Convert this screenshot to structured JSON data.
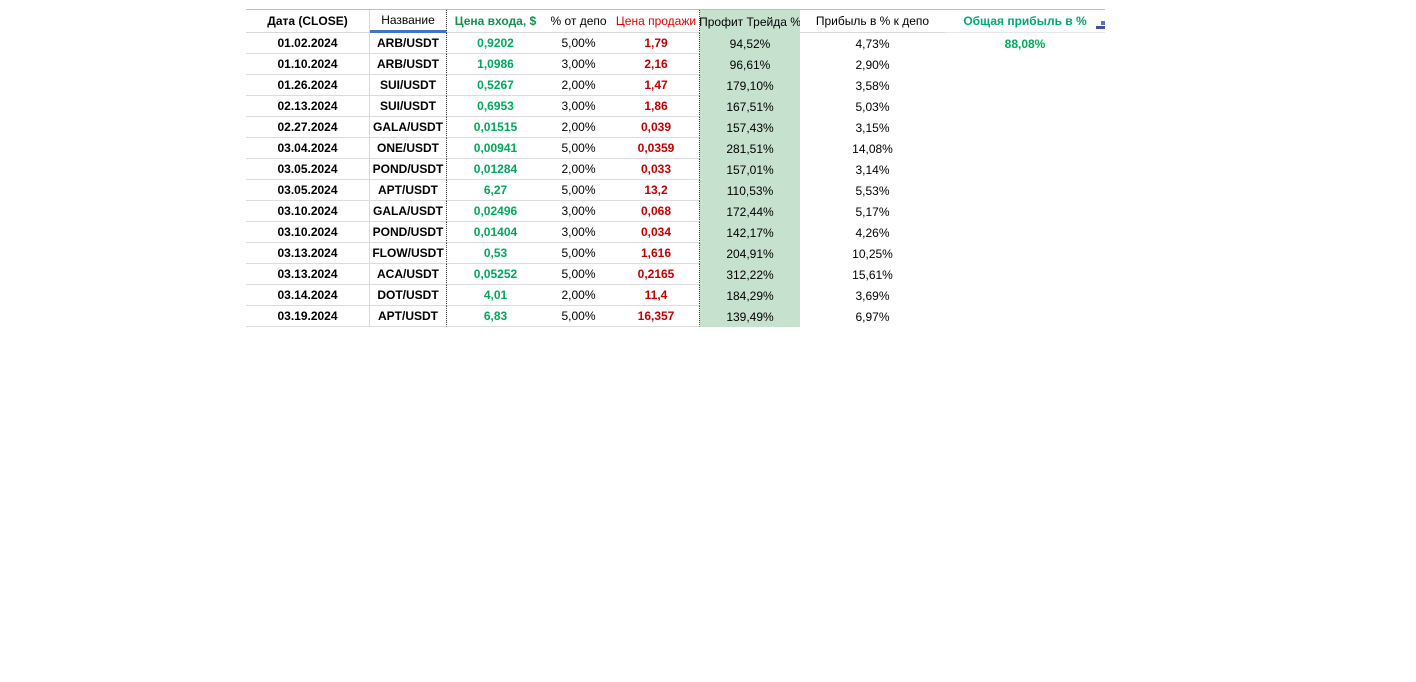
{
  "table": {
    "headers": {
      "date": "Дата (CLOSE)",
      "name": "Название",
      "entry": "Цена входа, $",
      "depo": "% от депо",
      "sale": "Цена продажи",
      "profit": "Профит Трейда %",
      "profit_depo": "Прибыль в % к депо",
      "total": "Общая прибыль в %"
    },
    "rows": [
      {
        "date": "01.02.2024",
        "name": "ARB/USDT",
        "entry": "0,9202",
        "depo": "5,00%",
        "sale": "1,79",
        "profit": "94,52%",
        "profit_depo": "4,73%",
        "total": "88,08%"
      },
      {
        "date": "01.10.2024",
        "name": "ARB/USDT",
        "entry": "1,0986",
        "depo": "3,00%",
        "sale": "2,16",
        "profit": "96,61%",
        "profit_depo": "2,90%",
        "total": ""
      },
      {
        "date": "01.26.2024",
        "name": "SUI/USDT",
        "entry": "0,5267",
        "depo": "2,00%",
        "sale": "1,47",
        "profit": "179,10%",
        "profit_depo": "3,58%",
        "total": ""
      },
      {
        "date": "02.13.2024",
        "name": "SUI/USDT",
        "entry": "0,6953",
        "depo": "3,00%",
        "sale": "1,86",
        "profit": "167,51%",
        "profit_depo": "5,03%",
        "total": ""
      },
      {
        "date": "02.27.2024",
        "name": "GALA/USDT",
        "entry": "0,01515",
        "depo": "2,00%",
        "sale": "0,039",
        "profit": "157,43%",
        "profit_depo": "3,15%",
        "total": ""
      },
      {
        "date": "03.04.2024",
        "name": "ONE/USDT",
        "entry": "0,00941",
        "depo": "5,00%",
        "sale": "0,0359",
        "profit": "281,51%",
        "profit_depo": "14,08%",
        "total": ""
      },
      {
        "date": "03.05.2024",
        "name": "POND/USDT",
        "entry": "0,01284",
        "depo": "2,00%",
        "sale": "0,033",
        "profit": "157,01%",
        "profit_depo": "3,14%",
        "total": ""
      },
      {
        "date": "03.05.2024",
        "name": "APT/USDT",
        "entry": "6,27",
        "depo": "5,00%",
        "sale": "13,2",
        "profit": "110,53%",
        "profit_depo": "5,53%",
        "total": ""
      },
      {
        "date": "03.10.2024",
        "name": "GALA/USDT",
        "entry": "0,02496",
        "depo": "3,00%",
        "sale": "0,068",
        "profit": "172,44%",
        "profit_depo": "5,17%",
        "total": ""
      },
      {
        "date": "03.10.2024",
        "name": "POND/USDT",
        "entry": "0,01404",
        "depo": "3,00%",
        "sale": "0,034",
        "profit": "142,17%",
        "profit_depo": "4,26%",
        "total": ""
      },
      {
        "date": "03.13.2024",
        "name": "FLOW/USDT",
        "entry": "0,53",
        "depo": "5,00%",
        "sale": "1,616",
        "profit": "204,91%",
        "profit_depo": "10,25%",
        "total": ""
      },
      {
        "date": "03.13.2024",
        "name": "ACA/USDT",
        "entry": "0,05252",
        "depo": "5,00%",
        "sale": "0,2165",
        "profit": "312,22%",
        "profit_depo": "15,61%",
        "total": ""
      },
      {
        "date": "03.14.2024",
        "name": "DOT/USDT",
        "entry": "4,01",
        "depo": "2,00%",
        "sale": "11,4",
        "profit": "184,29%",
        "profit_depo": "3,69%",
        "total": ""
      },
      {
        "date": "03.19.2024",
        "name": "APT/USDT",
        "entry": "6,83",
        "depo": "5,00%",
        "sale": "16,357",
        "profit": "139,49%",
        "profit_depo": "6,97%",
        "total": ""
      }
    ]
  },
  "colors": {
    "entry_header_green": "#15914e",
    "value_green": "#00a85c",
    "total_header_green": "#00a876",
    "sale_header_red": "#e00000",
    "value_red": "#c00000",
    "highlight_column_bg": "#c7e1cf",
    "name_underline_blue": "#4472c4"
  }
}
